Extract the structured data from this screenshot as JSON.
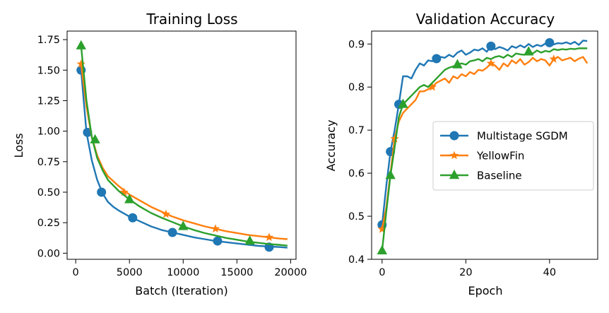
{
  "chart_data": [
    {
      "type": "line",
      "title": "Training Loss",
      "xlabel": "Batch (Iteration)",
      "ylabel": "Loss",
      "xlim": [
        -800,
        20500
      ],
      "ylim": [
        -0.05,
        1.82
      ],
      "xticks": [
        0,
        5000,
        10000,
        15000,
        20000
      ],
      "xtick_labels": [
        "0",
        "5000",
        "10000",
        "15000",
        "20000"
      ],
      "yticks": [
        0.0,
        0.25,
        0.5,
        0.75,
        1.0,
        1.25,
        1.5,
        1.75
      ],
      "ytick_labels": [
        "0.00",
        "0.25",
        "0.50",
        "0.75",
        "1.00",
        "1.25",
        "1.50",
        "1.75"
      ],
      "grid": false,
      "series": [
        {
          "name": "Multistage SGDM",
          "color": "#1f77b4",
          "marker": "circle",
          "x": [
            500,
            1000,
            1500,
            2000,
            2500,
            3000,
            3500,
            4000,
            5000,
            6000,
            7000,
            8000,
            9000,
            10000,
            11000,
            12000,
            13000,
            14000,
            15000,
            16000,
            17000,
            18000,
            19000,
            19700
          ],
          "y": [
            1.5,
            0.99,
            0.76,
            0.6,
            0.49,
            0.42,
            0.38,
            0.35,
            0.3,
            0.26,
            0.22,
            0.19,
            0.17,
            0.15,
            0.13,
            0.115,
            0.1,
            0.09,
            0.08,
            0.07,
            0.06,
            0.055,
            0.05,
            0.045
          ],
          "marker_x": [
            500,
            1100,
            2400,
            5300,
            9000,
            13200,
            18000
          ],
          "marker_y": [
            1.5,
            0.99,
            0.5,
            0.29,
            0.17,
            0.1,
            0.05
          ]
        },
        {
          "name": "YellowFin",
          "color": "#ff7f0e",
          "marker": "star",
          "x": [
            500,
            1000,
            1500,
            2000,
            2500,
            3000,
            4000,
            5000,
            6000,
            7000,
            8000,
            9000,
            10000,
            11000,
            12000,
            13000,
            14000,
            15000,
            16000,
            17000,
            18000,
            19000,
            19700
          ],
          "y": [
            1.55,
            1.2,
            0.95,
            0.8,
            0.7,
            0.63,
            0.55,
            0.48,
            0.43,
            0.38,
            0.34,
            0.3,
            0.27,
            0.245,
            0.22,
            0.2,
            0.18,
            0.165,
            0.15,
            0.14,
            0.13,
            0.12,
            0.115
          ],
          "marker_x": [
            500,
            4500,
            8400,
            13000,
            18000
          ],
          "marker_y": [
            1.55,
            0.5,
            0.32,
            0.2,
            0.13
          ]
        },
        {
          "name": "Baseline",
          "color": "#2ca02c",
          "marker": "triangle",
          "x": [
            500,
            1000,
            1500,
            2000,
            2500,
            3000,
            4000,
            5000,
            6000,
            7000,
            8000,
            9000,
            10000,
            11000,
            12000,
            13000,
            14000,
            15000,
            16000,
            17000,
            18000,
            19000,
            19700
          ],
          "y": [
            1.7,
            1.25,
            0.95,
            0.78,
            0.68,
            0.6,
            0.51,
            0.44,
            0.38,
            0.33,
            0.29,
            0.255,
            0.22,
            0.19,
            0.165,
            0.145,
            0.125,
            0.11,
            0.095,
            0.085,
            0.075,
            0.068,
            0.062
          ],
          "marker_x": [
            500,
            1800,
            5000,
            10000,
            16200
          ],
          "marker_y": [
            1.7,
            0.93,
            0.44,
            0.22,
            0.1
          ]
        }
      ]
    },
    {
      "type": "line",
      "title": "Validation Accuracy",
      "xlabel": "Epoch",
      "ylabel": "Accuracy",
      "xlim": [
        -2.5,
        51.5
      ],
      "ylim": [
        0.4,
        0.93
      ],
      "xticks": [
        0,
        20,
        40
      ],
      "xtick_labels": [
        "0",
        "20",
        "40"
      ],
      "yticks": [
        0.4,
        0.5,
        0.6,
        0.7,
        0.8,
        0.9
      ],
      "ytick_labels": [
        "0.4",
        "0.5",
        "0.6",
        "0.7",
        "0.8",
        "0.9"
      ],
      "grid": false,
      "legend": "center-right",
      "series": [
        {
          "name": "Multistage SGDM",
          "color": "#1f77b4",
          "marker": "circle",
          "x": [
            0,
            1,
            2,
            3,
            4,
            5,
            6,
            7,
            8,
            9,
            10,
            11,
            12,
            13,
            14,
            15,
            16,
            17,
            18,
            19,
            20,
            21,
            22,
            23,
            24,
            25,
            26,
            27,
            28,
            29,
            30,
            31,
            32,
            33,
            34,
            35,
            36,
            37,
            38,
            39,
            40,
            41,
            42,
            43,
            44,
            45,
            46,
            47,
            48,
            49
          ],
          "y": [
            0.48,
            0.57,
            0.65,
            0.7,
            0.76,
            0.825,
            0.825,
            0.82,
            0.84,
            0.855,
            0.85,
            0.862,
            0.86,
            0.866,
            0.87,
            0.868,
            0.875,
            0.87,
            0.88,
            0.885,
            0.875,
            0.88,
            0.887,
            0.885,
            0.89,
            0.882,
            0.895,
            0.888,
            0.893,
            0.89,
            0.885,
            0.895,
            0.891,
            0.897,
            0.892,
            0.9,
            0.893,
            0.898,
            0.895,
            0.901,
            0.903,
            0.899,
            0.902,
            0.901,
            0.904,
            0.9,
            0.905,
            0.898,
            0.908,
            0.907
          ],
          "marker_x": [
            0,
            2,
            4,
            13,
            26,
            40
          ],
          "marker_y": [
            0.48,
            0.65,
            0.76,
            0.866,
            0.895,
            0.903
          ]
        },
        {
          "name": "YellowFin",
          "color": "#ff7f0e",
          "marker": "star",
          "x": [
            0,
            1,
            2,
            3,
            4,
            5,
            6,
            7,
            8,
            9,
            10,
            11,
            12,
            13,
            14,
            15,
            16,
            17,
            18,
            19,
            20,
            21,
            22,
            23,
            24,
            25,
            26,
            27,
            28,
            29,
            30,
            31,
            32,
            33,
            34,
            35,
            36,
            37,
            38,
            39,
            40,
            41,
            42,
            43,
            44,
            45,
            46,
            47,
            48,
            49
          ],
          "y": [
            0.47,
            0.52,
            0.6,
            0.68,
            0.72,
            0.74,
            0.75,
            0.76,
            0.77,
            0.79,
            0.79,
            0.795,
            0.8,
            0.81,
            0.815,
            0.82,
            0.81,
            0.825,
            0.82,
            0.83,
            0.825,
            0.835,
            0.83,
            0.84,
            0.838,
            0.845,
            0.855,
            0.85,
            0.84,
            0.855,
            0.848,
            0.862,
            0.855,
            0.865,
            0.852,
            0.858,
            0.868,
            0.86,
            0.865,
            0.862,
            0.85,
            0.865,
            0.87,
            0.862,
            0.865,
            0.868,
            0.86,
            0.866,
            0.87,
            0.855
          ],
          "marker_x": [
            0,
            3,
            12,
            26,
            41
          ],
          "marker_y": [
            0.47,
            0.68,
            0.8,
            0.855,
            0.865
          ]
        },
        {
          "name": "Baseline",
          "color": "#2ca02c",
          "marker": "triangle",
          "x": [
            0,
            1,
            2,
            3,
            4,
            5,
            6,
            7,
            8,
            9,
            10,
            11,
            12,
            13,
            14,
            15,
            16,
            17,
            18,
            19,
            20,
            21,
            22,
            23,
            24,
            25,
            26,
            27,
            28,
            29,
            30,
            31,
            32,
            33,
            34,
            35,
            36,
            37,
            38,
            39,
            40,
            41,
            42,
            43,
            44,
            45,
            46,
            47,
            48,
            49
          ],
          "y": [
            0.42,
            0.51,
            0.595,
            0.66,
            0.73,
            0.76,
            0.77,
            0.78,
            0.79,
            0.8,
            0.805,
            0.8,
            0.81,
            0.82,
            0.83,
            0.84,
            0.845,
            0.848,
            0.852,
            0.855,
            0.852,
            0.86,
            0.862,
            0.865,
            0.86,
            0.868,
            0.865,
            0.87,
            0.872,
            0.868,
            0.875,
            0.87,
            0.878,
            0.876,
            0.875,
            0.882,
            0.878,
            0.885,
            0.88,
            0.884,
            0.882,
            0.888,
            0.886,
            0.888,
            0.887,
            0.889,
            0.888,
            0.89,
            0.89,
            0.89
          ],
          "marker_x": [
            0,
            2,
            5,
            18,
            35
          ],
          "marker_y": [
            0.42,
            0.595,
            0.76,
            0.852,
            0.882
          ]
        }
      ]
    }
  ]
}
